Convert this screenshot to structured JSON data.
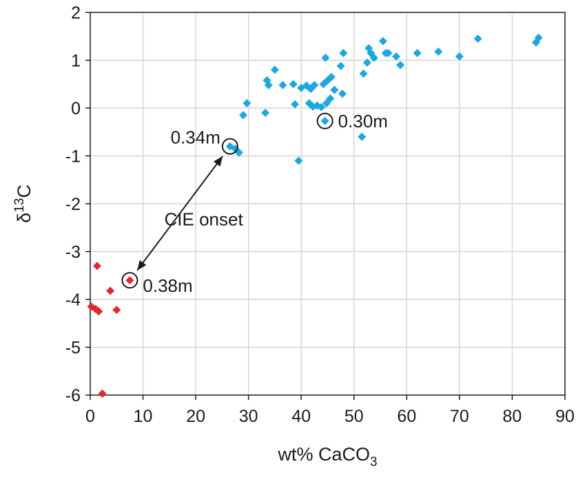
{
  "chart_data": {
    "type": "scatter",
    "title": "",
    "xlabel": "wt% CaCO",
    "xlabel_sub": "3",
    "ylabel": "δ",
    "ylabel_sup": "13",
    "ylabel_tail": "C",
    "xlim": [
      0,
      90
    ],
    "ylim": [
      -6,
      2
    ],
    "x_ticks": [
      0,
      10,
      20,
      30,
      40,
      50,
      60,
      70,
      80,
      90
    ],
    "y_ticks": [
      -6,
      -5,
      -4,
      -3,
      -2,
      -1,
      0,
      1,
      2
    ],
    "x_tick_labels": [
      "0",
      "10",
      "20",
      "30",
      "40",
      "50",
      "60",
      "70",
      "80",
      "90"
    ],
    "y_tick_labels": [
      "-6",
      "-5",
      "-4",
      "-3",
      "-2",
      "-1",
      "0",
      "1",
      "2"
    ],
    "grid": true,
    "legend": "none",
    "series": [
      {
        "color": "#1aa7e3",
        "marker": "diamond",
        "points": [
          [
            26.5,
            -0.8
          ],
          [
            27.5,
            -0.85
          ],
          [
            28.2,
            -0.93
          ],
          [
            29.0,
            -0.15
          ],
          [
            29.7,
            0.1
          ],
          [
            33.2,
            -0.1
          ],
          [
            33.5,
            0.58
          ],
          [
            33.8,
            0.48
          ],
          [
            35.0,
            0.8
          ],
          [
            36.5,
            0.48
          ],
          [
            38.5,
            0.5
          ],
          [
            38.8,
            0.08
          ],
          [
            39.5,
            -1.1
          ],
          [
            40.0,
            0.42
          ],
          [
            41.0,
            0.47
          ],
          [
            41.5,
            0.1
          ],
          [
            41.8,
            0.4
          ],
          [
            42.2,
            0.03
          ],
          [
            42.5,
            0.48
          ],
          [
            43.0,
            0.05
          ],
          [
            43.8,
            0.02
          ],
          [
            44.2,
            0.5
          ],
          [
            44.5,
            -0.27
          ],
          [
            44.6,
            1.05
          ],
          [
            44.8,
            0.1
          ],
          [
            45.0,
            0.58
          ],
          [
            45.5,
            0.2
          ],
          [
            45.7,
            0.65
          ],
          [
            46.3,
            0.38
          ],
          [
            47.5,
            0.88
          ],
          [
            47.8,
            0.3
          ],
          [
            48.0,
            1.15
          ],
          [
            51.5,
            -0.6
          ],
          [
            51.8,
            0.72
          ],
          [
            52.5,
            0.95
          ],
          [
            52.8,
            1.25
          ],
          [
            53.2,
            1.15
          ],
          [
            53.8,
            1.05
          ],
          [
            55.5,
            1.4
          ],
          [
            56.0,
            1.15
          ],
          [
            56.5,
            1.15
          ],
          [
            58.0,
            1.08
          ],
          [
            58.8,
            0.9
          ],
          [
            62.0,
            1.15
          ],
          [
            66.0,
            1.18
          ],
          [
            70.0,
            1.08
          ],
          [
            73.5,
            1.45
          ],
          [
            84.5,
            1.37
          ],
          [
            85.0,
            1.47
          ]
        ]
      },
      {
        "color": "#e8262b",
        "marker": "diamond",
        "points": [
          [
            0.2,
            -4.15
          ],
          [
            1.0,
            -4.2
          ],
          [
            1.3,
            -3.3
          ],
          [
            1.6,
            -4.25
          ],
          [
            2.3,
            -5.97
          ],
          [
            3.8,
            -3.82
          ],
          [
            5.0,
            -4.22
          ],
          [
            7.5,
            -3.6
          ]
        ]
      }
    ],
    "annotations": [
      {
        "text": "0.34m",
        "x": 26.5,
        "y": -0.8,
        "circled": true,
        "anchor": "left"
      },
      {
        "text": "0.30m",
        "x": 44.5,
        "y": -0.27,
        "circled": true,
        "anchor": "right"
      },
      {
        "text": "0.38m",
        "x": 7.5,
        "y": -3.6,
        "circled": true,
        "anchor": "right-below"
      },
      {
        "text": "CIE onset",
        "x": 21.5,
        "y": -2.45,
        "circled": false,
        "anchor": "center"
      }
    ],
    "arrow": {
      "from": [
        7.5,
        -3.6
      ],
      "to": [
        26.5,
        -0.8
      ],
      "double_headed": true,
      "label": "CIE onset"
    }
  }
}
